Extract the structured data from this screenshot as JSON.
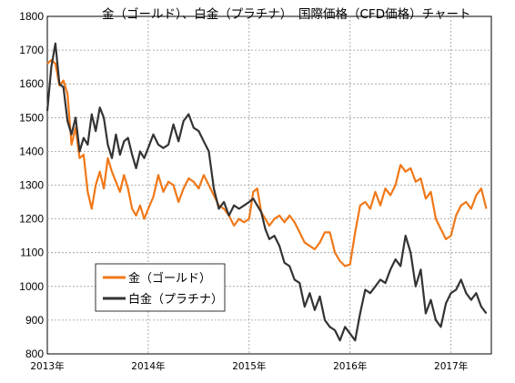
{
  "chart_data": {
    "type": "line",
    "title": "金（ゴールド）、白金（プラチナ）　国際価格（CFD価格）チャート",
    "ylim": [
      800,
      1800
    ],
    "yticks": [
      800,
      900,
      1000,
      1100,
      1200,
      1300,
      1400,
      1500,
      1600,
      1700,
      1800
    ],
    "xlim": [
      2013.0,
      2017.4
    ],
    "xticks": [
      {
        "value": 2013,
        "label": "2013年"
      },
      {
        "value": 2014,
        "label": "2014年"
      },
      {
        "value": 2015,
        "label": "2015年"
      },
      {
        "value": 2016,
        "label": "2016年"
      },
      {
        "value": 2017,
        "label": "2017年"
      }
    ],
    "grid": true,
    "legend_position": "lower-left",
    "series": [
      {
        "name": "金（ゴールド）",
        "color": "#F07818",
        "x": [
          2013.0,
          2013.04,
          2013.08,
          2013.12,
          2013.16,
          2013.2,
          2013.24,
          2013.28,
          2013.32,
          2013.36,
          2013.4,
          2013.44,
          2013.48,
          2013.52,
          2013.56,
          2013.6,
          2013.64,
          2013.68,
          2013.72,
          2013.76,
          2013.8,
          2013.84,
          2013.88,
          2013.92,
          2013.96,
          2014.0,
          2014.05,
          2014.1,
          2014.15,
          2014.2,
          2014.25,
          2014.3,
          2014.35,
          2014.4,
          2014.45,
          2014.5,
          2014.55,
          2014.6,
          2014.65,
          2014.7,
          2014.75,
          2014.8,
          2014.85,
          2014.9,
          2014.95,
          2015.0,
          2015.04,
          2015.08,
          2015.12,
          2015.16,
          2015.2,
          2015.25,
          2015.3,
          2015.35,
          2015.4,
          2015.45,
          2015.5,
          2015.55,
          2015.6,
          2015.65,
          2015.7,
          2015.75,
          2015.8,
          2015.85,
          2015.9,
          2015.95,
          2016.0,
          2016.05,
          2016.1,
          2016.15,
          2016.2,
          2016.25,
          2016.3,
          2016.35,
          2016.4,
          2016.45,
          2016.5,
          2016.55,
          2016.6,
          2016.65,
          2016.7,
          2016.75,
          2016.8,
          2016.85,
          2016.9,
          2016.95,
          2017.0,
          2017.05,
          2017.1,
          2017.15,
          2017.2,
          2017.25,
          2017.3,
          2017.35
        ],
        "values": [
          1660,
          1670,
          1660,
          1595,
          1610,
          1570,
          1420,
          1470,
          1380,
          1390,
          1280,
          1230,
          1300,
          1340,
          1290,
          1380,
          1340,
          1310,
          1280,
          1330,
          1290,
          1230,
          1210,
          1240,
          1200,
          1230,
          1265,
          1330,
          1280,
          1310,
          1300,
          1250,
          1290,
          1320,
          1310,
          1290,
          1330,
          1300,
          1270,
          1240,
          1230,
          1210,
          1180,
          1200,
          1190,
          1200,
          1280,
          1290,
          1220,
          1200,
          1180,
          1200,
          1210,
          1190,
          1210,
          1190,
          1160,
          1130,
          1120,
          1110,
          1130,
          1160,
          1160,
          1100,
          1075,
          1060,
          1065,
          1160,
          1240,
          1250,
          1230,
          1280,
          1240,
          1290,
          1270,
          1300,
          1360,
          1340,
          1350,
          1310,
          1320,
          1260,
          1280,
          1200,
          1170,
          1140,
          1150,
          1210,
          1240,
          1250,
          1230,
          1270,
          1290,
          1230
        ]
      },
      {
        "name": "白金（プラチナ）",
        "color": "#333333",
        "x": [
          2013.0,
          2013.04,
          2013.08,
          2013.12,
          2013.16,
          2013.2,
          2013.24,
          2013.28,
          2013.32,
          2013.36,
          2013.4,
          2013.44,
          2013.48,
          2013.52,
          2013.56,
          2013.6,
          2013.64,
          2013.68,
          2013.72,
          2013.76,
          2013.8,
          2013.84,
          2013.88,
          2013.92,
          2013.96,
          2014.0,
          2014.05,
          2014.1,
          2014.15,
          2014.2,
          2014.25,
          2014.3,
          2014.35,
          2014.4,
          2014.45,
          2014.5,
          2014.55,
          2014.6,
          2014.65,
          2014.7,
          2014.75,
          2014.8,
          2014.85,
          2014.9,
          2014.95,
          2015.0,
          2015.04,
          2015.08,
          2015.12,
          2015.16,
          2015.2,
          2015.25,
          2015.3,
          2015.35,
          2015.4,
          2015.45,
          2015.5,
          2015.55,
          2015.6,
          2015.65,
          2015.7,
          2015.75,
          2015.8,
          2015.85,
          2015.9,
          2015.95,
          2016.0,
          2016.05,
          2016.1,
          2016.15,
          2016.2,
          2016.25,
          2016.3,
          2016.35,
          2016.4,
          2016.45,
          2016.5,
          2016.55,
          2016.6,
          2016.65,
          2016.7,
          2016.75,
          2016.8,
          2016.85,
          2016.9,
          2016.95,
          2017.0,
          2017.05,
          2017.1,
          2017.15,
          2017.2,
          2017.25,
          2017.3,
          2017.35
        ],
        "values": [
          1520,
          1650,
          1720,
          1600,
          1590,
          1490,
          1450,
          1500,
          1400,
          1440,
          1420,
          1510,
          1460,
          1530,
          1500,
          1420,
          1380,
          1450,
          1390,
          1430,
          1440,
          1390,
          1350,
          1400,
          1380,
          1410,
          1450,
          1420,
          1410,
          1420,
          1480,
          1430,
          1490,
          1510,
          1470,
          1460,
          1430,
          1400,
          1290,
          1230,
          1250,
          1210,
          1240,
          1230,
          1240,
          1250,
          1260,
          1240,
          1220,
          1170,
          1140,
          1150,
          1120,
          1070,
          1060,
          1020,
          1010,
          940,
          980,
          930,
          970,
          900,
          880,
          870,
          840,
          880,
          860,
          840,
          920,
          990,
          980,
          1000,
          1020,
          1010,
          1050,
          1080,
          1060,
          1150,
          1100,
          1000,
          1050,
          920,
          960,
          900,
          880,
          950,
          980,
          990,
          1020,
          980,
          960,
          980,
          940,
          920
        ]
      }
    ]
  }
}
